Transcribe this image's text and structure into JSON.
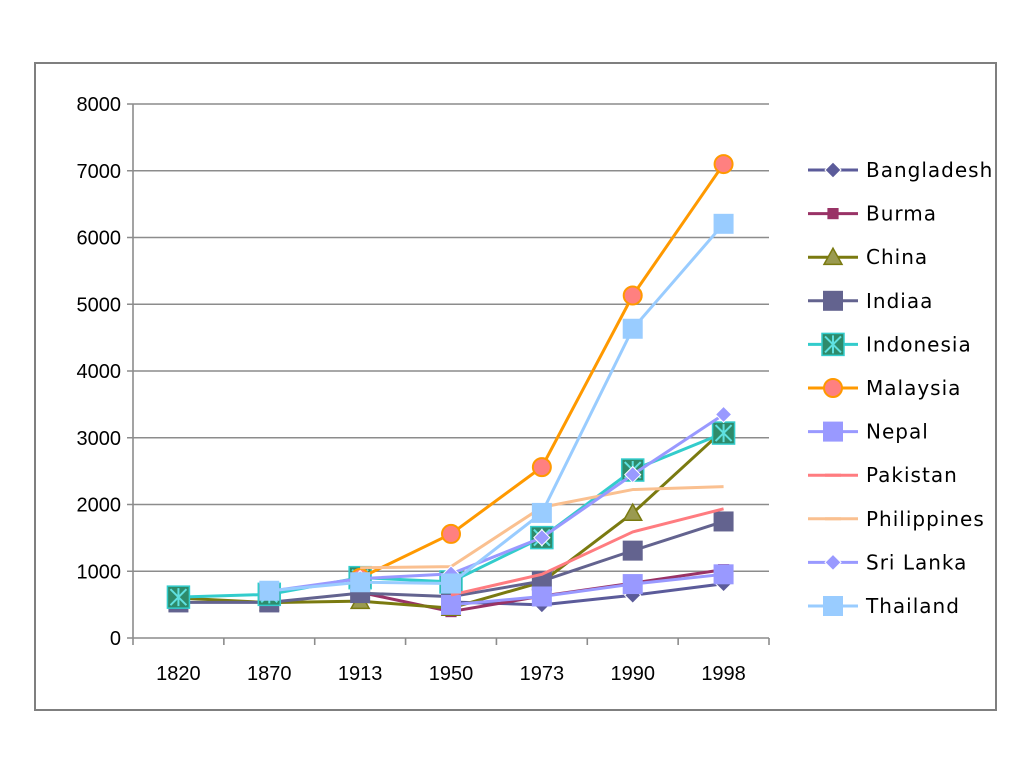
{
  "chart_data": {
    "type": "line",
    "title": "",
    "xlabel": "",
    "ylabel": "",
    "ylim": [
      0,
      8000
    ],
    "y_ticks": [
      0,
      1000,
      2000,
      3000,
      4000,
      5000,
      6000,
      7000,
      8000
    ],
    "categories": [
      "1820",
      "1870",
      "1913",
      "1950",
      "1973",
      "1990",
      "1998"
    ],
    "grid": "horizontal",
    "legend_position": "right",
    "series": [
      {
        "name": "Bangladesh",
        "color": "#5b5b9a",
        "marker": "diamond",
        "values": [
          null,
          null,
          null,
          540,
          497,
          640,
          813
        ]
      },
      {
        "name": "Burma",
        "color": "#993366",
        "marker": "square-small",
        "values": [
          null,
          null,
          685,
          396,
          628,
          822,
          1024
        ]
      },
      {
        "name": "China",
        "color": "#7a7a10",
        "marker": "triangle",
        "values": [
          600,
          530,
          552,
          448,
          838,
          1871,
          3117
        ]
      },
      {
        "name": "Indiaa",
        "color": "#63638f",
        "marker": "square",
        "values": [
          533,
          533,
          673,
          619,
          853,
          1309,
          1746
        ]
      },
      {
        "name": "Indonesia",
        "color": "#33cccc",
        "marker": "x-square",
        "values": [
          612,
          654,
          904,
          840,
          1504,
          2516,
          3070
        ]
      },
      {
        "name": "Malaysia",
        "color": "#ff9900",
        "marker": "circle",
        "values": [
          null,
          null,
          900,
          1559,
          2560,
          5131,
          7100
        ]
      },
      {
        "name": "Nepal",
        "color": "#9999ff",
        "marker": "square",
        "values": [
          null,
          null,
          null,
          496,
          622,
          808,
          954
        ]
      },
      {
        "name": "Pakistan",
        "color": "#ff7c80",
        "marker": "dash",
        "values": [
          null,
          null,
          null,
          643,
          954,
          1589,
          1935
        ]
      },
      {
        "name": "Philippines",
        "color": "#fac090",
        "marker": "dash",
        "values": [
          null,
          null,
          1053,
          1070,
          1959,
          2224,
          2268
        ]
      },
      {
        "name": "Sri Lanka",
        "color": "#9999ff",
        "marker": "diamond",
        "values": [
          null,
          700,
          890,
          961,
          1504,
          2448,
          3349
        ]
      },
      {
        "name": "Thailand",
        "color": "#99ccff",
        "marker": "square",
        "values": [
          null,
          708,
          835,
          817,
          1874,
          4633,
          6205
        ]
      }
    ]
  }
}
